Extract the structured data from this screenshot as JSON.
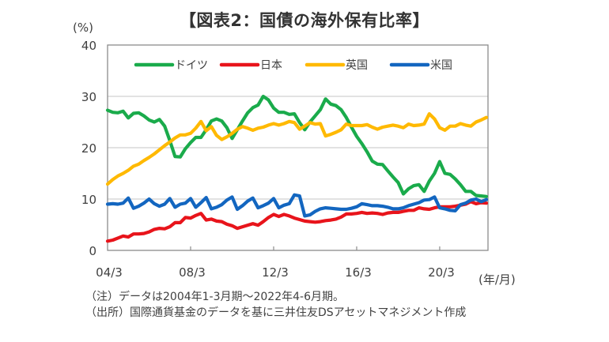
{
  "chart_data": {
    "type": "line",
    "title": "【図表2：国債の海外保有比率】",
    "ylabel": "(%)",
    "xlabel": "(年/月)",
    "ylim": [
      0,
      40
    ],
    "yticks": [
      0,
      10,
      20,
      30,
      40
    ],
    "x_start": "2004Q1",
    "x_end": "2022Q2",
    "frequency": "quarterly",
    "x_tick_labels": [
      "04/3",
      "08/3",
      "12/3",
      "16/3",
      "20/3"
    ],
    "x_tick_index": [
      0,
      16,
      32,
      48,
      64
    ],
    "grid": true,
    "legend_position": "top",
    "series": [
      {
        "name": "ドイツ",
        "color": "#1aab4b",
        "values": [
          27.3,
          26.9,
          26.8,
          27.1,
          25.8,
          26.7,
          26.8,
          26.2,
          25.4,
          25.0,
          25.5,
          24.2,
          21.4,
          18.3,
          18.2,
          19.8,
          21.0,
          22.0,
          22.0,
          23.5,
          25.2,
          25.6,
          25.2,
          23.9,
          21.8,
          23.5,
          25.2,
          26.8,
          27.8,
          28.3,
          30.0,
          29.3,
          27.7,
          26.9,
          26.9,
          26.5,
          26.6,
          24.9,
          23.5,
          25.0,
          26.2,
          27.4,
          29.5,
          28.5,
          28.2,
          27.4,
          25.9,
          24.0,
          22.2,
          20.8,
          19.2,
          17.4,
          16.8,
          16.7,
          15.5,
          14.3,
          13.2,
          11.0,
          12.0,
          12.6,
          12.8,
          11.5,
          13.5,
          15.0,
          17.3,
          15.0,
          14.8,
          13.9,
          12.8,
          11.5,
          11.5,
          10.7,
          10.6,
          10.5
        ]
      },
      {
        "name": "日本",
        "color": "#e8141b",
        "values": [
          1.8,
          2.0,
          2.4,
          2.8,
          2.6,
          3.2,
          3.2,
          3.3,
          3.6,
          4.1,
          4.3,
          4.2,
          4.6,
          5.4,
          5.4,
          6.4,
          6.3,
          6.8,
          7.2,
          5.9,
          6.1,
          5.7,
          5.6,
          5.1,
          4.8,
          4.3,
          4.6,
          4.9,
          5.2,
          4.9,
          5.6,
          6.4,
          7.0,
          6.6,
          7.0,
          6.7,
          6.3,
          6.0,
          5.7,
          5.6,
          5.5,
          5.6,
          5.8,
          5.9,
          6.1,
          6.5,
          7.1,
          7.1,
          7.2,
          7.4,
          7.2,
          7.3,
          7.2,
          7.0,
          7.3,
          7.4,
          7.4,
          7.6,
          7.8,
          7.8,
          8.3,
          8.1,
          8.0,
          8.3,
          8.5,
          8.5,
          8.5,
          8.6,
          8.8,
          9.0,
          9.5,
          9.1,
          9.3,
          9.2
        ]
      },
      {
        "name": "英国",
        "color": "#ffb900",
        "values": [
          12.9,
          13.8,
          14.5,
          15.0,
          15.6,
          16.4,
          16.8,
          17.5,
          18.1,
          18.8,
          19.6,
          20.4,
          21.1,
          21.9,
          22.5,
          22.5,
          22.8,
          23.8,
          25.1,
          23.3,
          24.1,
          22.4,
          21.6,
          22.1,
          22.8,
          23.6,
          24.1,
          23.8,
          23.4,
          23.8,
          24.0,
          24.4,
          24.7,
          24.4,
          24.7,
          25.1,
          24.9,
          23.6,
          24.2,
          24.9,
          24.6,
          24.7,
          22.3,
          22.6,
          23.0,
          23.5,
          24.6,
          24.3,
          24.3,
          24.3,
          24.5,
          24.0,
          23.6,
          24.0,
          24.2,
          24.4,
          24.2,
          23.9,
          24.6,
          24.3,
          24.4,
          24.6,
          26.6,
          25.6,
          23.9,
          23.4,
          24.2,
          24.2,
          24.7,
          24.4,
          24.2,
          25.0,
          25.4,
          25.9
        ]
      },
      {
        "name": "米国",
        "color": "#1366c0",
        "values": [
          9.0,
          9.1,
          9.0,
          9.2,
          10.2,
          8.2,
          8.6,
          9.2,
          10.0,
          9.1,
          8.6,
          9.0,
          10.1,
          8.4,
          9.0,
          9.2,
          10.1,
          8.4,
          9.3,
          10.3,
          8.1,
          8.4,
          8.9,
          9.8,
          10.4,
          8.0,
          8.7,
          9.6,
          10.2,
          8.3,
          8.7,
          9.2,
          10.1,
          8.3,
          8.8,
          9.1,
          10.8,
          10.6,
          6.7,
          6.9,
          7.6,
          8.1,
          8.3,
          8.2,
          8.1,
          8.0,
          8.0,
          8.2,
          8.5,
          9.1,
          8.9,
          8.7,
          8.7,
          8.6,
          8.4,
          8.1,
          8.1,
          8.3,
          8.7,
          9.0,
          9.3,
          9.8,
          9.9,
          10.4,
          8.3,
          8.1,
          7.8,
          7.7,
          8.9,
          9.2,
          9.8,
          10.0,
          9.5,
          9.9
        ]
      }
    ]
  },
  "notes": {
    "line1": "（注）データは2004年1-3月期～2022年4-6月期。",
    "line2": "（出所）国際通貨基金のデータを基に三井住友DSアセットマネジメント作成"
  }
}
